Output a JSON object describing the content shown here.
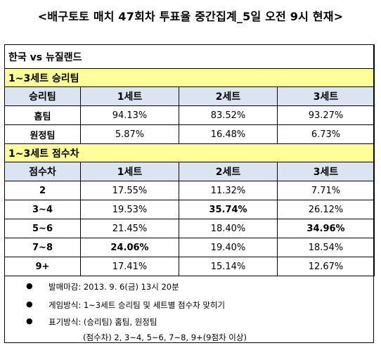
{
  "title": "<배구토토 매치 47회차 투표율 중간집계_5일 오전 9시 현재>",
  "match": "한국 vs 뉴질랜드",
  "win_section": {
    "title": "1~3세트 승리팀",
    "headers": [
      "승리팀",
      "1세트",
      "2세트",
      "3세트"
    ],
    "rows": [
      {
        "label": "홈팀",
        "values": [
          "94.13%",
          "83.52%",
          "93.27%"
        ]
      },
      {
        "label": "원정팀",
        "values": [
          "5.87%",
          "16.48%",
          "6.73%"
        ]
      }
    ]
  },
  "score_section": {
    "title": "1~3세트 점수차",
    "headers": [
      "점수차",
      "1세트",
      "2세트",
      "3세트"
    ],
    "rows": [
      {
        "label": "2",
        "values": [
          "17.55%",
          "11.32%",
          "7.71%"
        ]
      },
      {
        "label": "3~4",
        "values": [
          "19.53%",
          "35.74%",
          "26.12%"
        ]
      },
      {
        "label": "5~6",
        "values": [
          "21.45%",
          "18.40%",
          "34.96%"
        ]
      },
      {
        "label": "7~8",
        "values": [
          "24.06%",
          "19.40%",
          "18.54%"
        ]
      },
      {
        "label": "9+",
        "values": [
          "17.41%",
          "15.14%",
          "12.67%"
        ]
      }
    ]
  },
  "notes": {
    "bullet": "●",
    "deadline": "발매마감: 2013. 9. 6(금) 13시 20분",
    "method": "게임방식: 1~3세트 승리팀 및 세트별 점수차 맞히기",
    "display": "표기방식: (승리팀) 홈팀, 원정팀",
    "display_sub": "(점수차) 2, 3~4, 5~6, 7~8, 9+(9점차 이상)"
  }
}
